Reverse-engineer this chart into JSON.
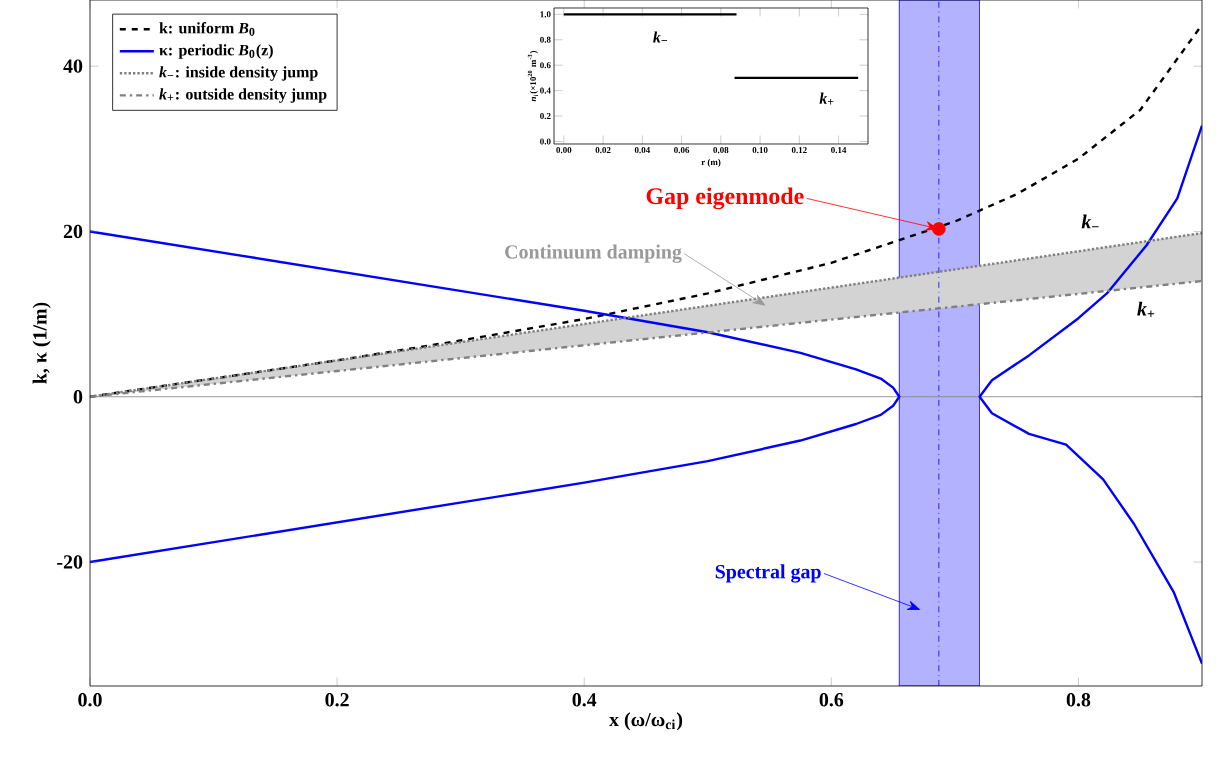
{
  "chart_data": [
    {
      "type": "line",
      "xlabel": "x (ω/ω$_{ci}$)",
      "ylabel": "k, κ (1/m)",
      "xlim": [
        0,
        0.9
      ],
      "ylim": [
        -35,
        48
      ],
      "xticks": [
        {
          "value": 0,
          "label": "0.0"
        },
        {
          "value": 0.2,
          "label": "0.2"
        },
        {
          "value": 0.4,
          "label": "0.4"
        },
        {
          "value": 0.6,
          "label": "0.6"
        },
        {
          "value": 0.8,
          "label": "0.8"
        }
      ],
      "yticks": [
        -20,
        0,
        20,
        40
      ],
      "legend": "top left",
      "series": [
        {
          "name": "k: uniform *B*$_{0}$",
          "color": "#000000",
          "line_style": "dashed",
          "x": [
            0,
            0.1,
            0.2,
            0.3,
            0.4,
            0.5,
            0.6,
            0.65,
            0.7,
            0.75,
            0.8,
            0.85,
            0.9
          ],
          "values": [
            0,
            2.2,
            4.4,
            6.8,
            9.4,
            12.5,
            16.2,
            18.7,
            21.2,
            24.5,
            28.8,
            34.7,
            45
          ]
        },
        {
          "name": "κ: periodic *B*$_{0}$(z)",
          "color": "#0000ff",
          "line_style": "solid",
          "x": [
            0,
            0.2,
            0.4,
            0.5,
            0.575,
            0.62,
            0.64,
            0.65,
            0.655,
            0.65,
            0.64,
            0.62,
            0.575,
            0.5,
            0.4,
            0.2,
            0,
            0.7,
            0.9,
            0.88,
            0.855,
            0.823,
            0.8,
            0.76,
            0.73,
            0.72,
            0.73,
            0.76,
            0.79,
            0.82,
            0.845,
            0.877,
            0.9
          ],
          "values": [
            20,
            15.2,
            10.4,
            7.8,
            5.3,
            3.3,
            2.2,
            1.1,
            0,
            -1.1,
            -2.2,
            -3.3,
            -5.3,
            -7.8,
            -10.4,
            -15.2,
            -20,
            null,
            32.8,
            24,
            18.3,
            12.5,
            9.5,
            5,
            2,
            0,
            -2,
            -4.5,
            -5.8,
            -10,
            -15.4,
            -23.6,
            -32.3
          ]
        },
        {
          "name": "*k*$_{−}$: inside density jump",
          "color": "#808080",
          "line_style": "dotted",
          "x": [
            0,
            0.9
          ],
          "values": [
            0,
            19.8
          ],
          "lower": [
            0,
            14
          ],
          "upper": [
            0,
            19.8
          ]
        },
        {
          "name": "*k*$_{+}$: outside density jump",
          "color": "#808080",
          "line_style": "dashdot",
          "x": [
            0,
            0.9
          ],
          "values": [
            0,
            14
          ]
        },
        {
          "type": "scatter",
          "color": "#ff0000",
          "x": [
            0.687
          ],
          "values": [
            20.3
          ]
        }
      ],
      "ref_lines": [
        {
          "axis": "y",
          "value": 0,
          "color": "#808080",
          "line_style": "solid"
        },
        {
          "axis": "x",
          "value": 0.687,
          "color": "#0000ff",
          "line_style": "dashdot"
        }
      ],
      "bands": [
        {
          "axis": "x",
          "from": 0.655,
          "to": 0.72,
          "color": "#b2b2ff"
        }
      ],
      "annotations": [
        {
          "text": "Gap eigenmode",
          "x": 0.687,
          "y": 20.3
        },
        {
          "text": "Continuum damping",
          "x": 0.547,
          "y": 11
        },
        "Spectral gap",
        "*k*$_{−}$",
        "*k*$_{+}$"
      ]
    },
    {
      "type": "line",
      "xlabel": "r (m)",
      "ylabel": "*n*$_{i}$(×10$^{20}$ m$^{-3}$)",
      "xlim": [
        -0.005,
        0.155
      ],
      "ylim": [
        -0.02,
        1.05
      ],
      "xticks": [
        {
          "value": 0,
          "label": "0.00"
        },
        {
          "value": 0.02,
          "label": "0.02"
        },
        {
          "value": 0.04,
          "label": "0.04"
        },
        {
          "value": 0.06,
          "label": "0.06"
        },
        {
          "value": 0.08,
          "label": "0.08"
        },
        {
          "value": 0.1,
          "label": "0.10"
        },
        {
          "value": 0.12,
          "label": "0.12"
        },
        {
          "value": 0.14,
          "label": "0.14"
        }
      ],
      "yticks": [
        {
          "value": 0,
          "label": "0.0"
        },
        {
          "value": 0.2,
          "label": "0.2"
        },
        {
          "value": 0.4,
          "label": "0.4"
        },
        {
          "value": 0.6,
          "label": "0.6"
        },
        {
          "value": 0.8,
          "label": "0.8"
        },
        {
          "value": 1,
          "label": "1.0"
        }
      ],
      "series": [
        {
          "color": "#000000",
          "line_style": "solid",
          "x": [
            0,
            0.088
          ],
          "values": [
            1,
            1
          ]
        },
        {
          "color": "#000000",
          "line_style": "solid",
          "x": [
            0.087,
            0.15
          ],
          "values": [
            0.5,
            0.5
          ]
        }
      ],
      "annotations": [
        "*k*$_{−}$",
        "*k*$_{+}$"
      ]
    }
  ]
}
